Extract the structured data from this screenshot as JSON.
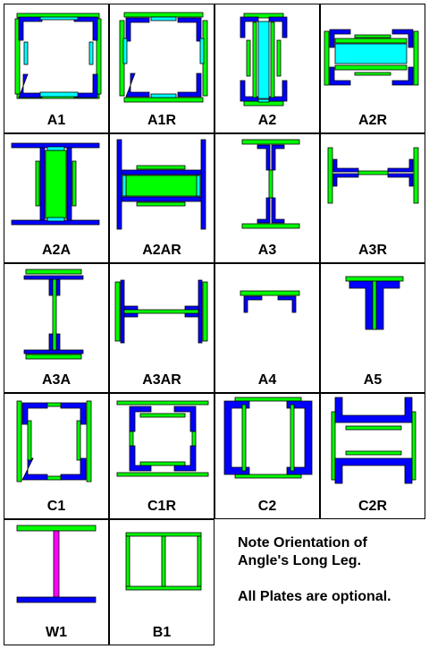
{
  "labels": {
    "A1": "A1",
    "A1R": "A1R",
    "A2": "A2",
    "A2R": "A2R",
    "A2A": "A2A",
    "A2AR": "A2AR",
    "A3": "A3",
    "A3R": "A3R",
    "A3A": "A3A",
    "A3AR": "A3AR",
    "A4": "A4",
    "A5": "A5",
    "C1": "C1",
    "C1R": "C1R",
    "C2": "C2",
    "C2R": "C2R",
    "W1": "W1",
    "B1": "B1"
  },
  "note": {
    "line1": "Note Orientation of",
    "line2": "Angle's Long Leg.",
    "line3": "All Plates are optional."
  },
  "colors": {
    "angle": "#0000ff",
    "plate": "#00ff00",
    "batten": "#00ffff",
    "web": "#ff00ff",
    "border": "#000000"
  }
}
